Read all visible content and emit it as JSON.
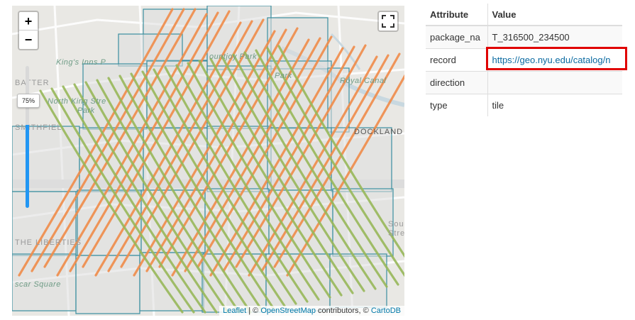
{
  "map": {
    "zoom_in_label": "+",
    "zoom_out_label": "−",
    "opacity_label": "75%",
    "opacity_value": 0.75,
    "labels": {
      "kings_inns": "King's Inns P",
      "north_king": "North King Stre",
      "park": "Park",
      "mountjoy": "ountjoy Park",
      "park2": "Park",
      "royal_canal": "Royal Canal",
      "batter": "BATTER",
      "smithfield": "SMITHFIEL",
      "docklands": "DOCKLAND",
      "liberties": "THE LIBERTIES",
      "sou": "Sou",
      "stre": "Stre",
      "oscar": "scar Square"
    },
    "attribution": {
      "leaflet": "Leaflet",
      "sep1": " | © ",
      "osm": "OpenStreetMap",
      "mid": " contributors, © ",
      "carto": "CartoDB"
    },
    "colors": {
      "tile_border": "#3a8fa0",
      "orange_stroke": "#f08c4a",
      "green_stroke": "#98b85a"
    }
  },
  "table": {
    "headers": [
      "Attribute",
      "Value"
    ],
    "rows": [
      {
        "key": "package_na",
        "value": "T_316500_234500"
      },
      {
        "key": "record",
        "value": "https://geo.nyu.edu/catalog/n"
      },
      {
        "key": "direction",
        "value": ""
      },
      {
        "key": "type",
        "value": "tile"
      }
    ]
  }
}
